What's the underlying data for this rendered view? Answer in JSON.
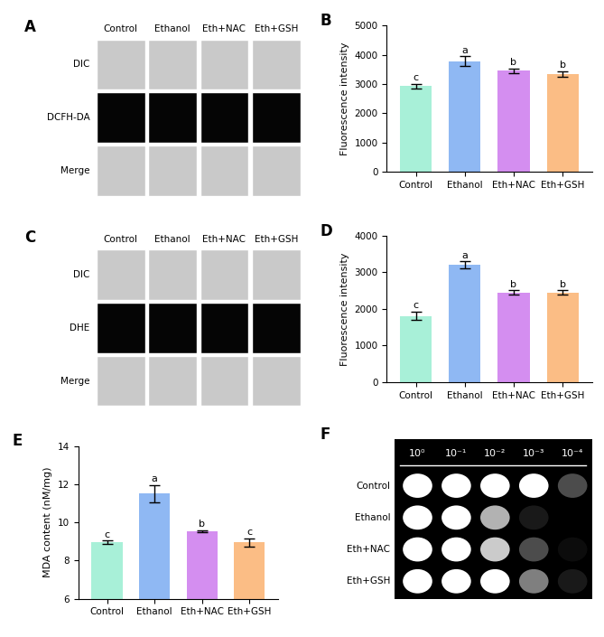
{
  "chart_data": [
    {
      "panel": "B",
      "type": "bar",
      "ylabel": "Fluorescence intensity",
      "categories": [
        "Control",
        "Ethanol",
        "Eth+NAC",
        "Eth+GSH"
      ],
      "values": [
        2930,
        3780,
        3460,
        3350
      ],
      "errors": [
        80,
        170,
        80,
        90
      ],
      "annotations": [
        "c",
        "a",
        "b",
        "b"
      ],
      "colors": [
        "#a8f0d8",
        "#8fb8f3",
        "#d48ef0",
        "#fbbd85"
      ],
      "ylim": [
        0,
        5000
      ],
      "yticks": [
        0,
        1000,
        2000,
        3000,
        4000,
        5000
      ]
    },
    {
      "panel": "D",
      "type": "bar",
      "ylabel": "Fluorescence intensity",
      "categories": [
        "Control",
        "Ethanol",
        "Eth+NAC",
        "Eth+GSH"
      ],
      "values": [
        1810,
        3200,
        2450,
        2450
      ],
      "errors": [
        120,
        100,
        60,
        60
      ],
      "annotations": [
        "c",
        "a",
        "b",
        "b"
      ],
      "colors": [
        "#a8f0d8",
        "#8fb8f3",
        "#d48ef0",
        "#fbbd85"
      ],
      "ylim": [
        0,
        4000
      ],
      "yticks": [
        0,
        1000,
        2000,
        3000,
        4000
      ]
    },
    {
      "panel": "E",
      "type": "bar",
      "ylabel": "MDA content (nM/mg)",
      "categories": [
        "Control",
        "Ethanol",
        "Eth+NAC",
        "Eth+GSH"
      ],
      "values": [
        8.95,
        11.5,
        9.55,
        8.95
      ],
      "errors": [
        0.1,
        0.45,
        0.05,
        0.2
      ],
      "annotations": [
        "c",
        "a",
        "b",
        "c"
      ],
      "colors": [
        "#a8f0d8",
        "#8fb8f3",
        "#d48ef0",
        "#fbbd85"
      ],
      "ylim": [
        6,
        14
      ],
      "yticks": [
        6,
        8,
        10,
        12,
        14
      ]
    }
  ],
  "image_panels": [
    {
      "panel": "A",
      "columns": [
        "Control",
        "Ethanol",
        "Eth+NAC",
        "Eth+GSH"
      ],
      "rows": [
        "DIC",
        "DCFH-DA",
        "Merge"
      ]
    },
    {
      "panel": "C",
      "columns": [
        "Control",
        "Ethanol",
        "Eth+NAC",
        "Eth+GSH"
      ],
      "rows": [
        "DIC",
        "DHE",
        "Merge"
      ]
    }
  ],
  "spot_assay": {
    "panel": "F",
    "columns": [
      "10⁰",
      "10⁻¹",
      "10⁻²",
      "10⁻³",
      "10⁻⁴"
    ],
    "rows": [
      "Control",
      "Ethanol",
      "Eth+NAC",
      "Eth+GSH"
    ],
    "growth": [
      [
        1,
        1,
        1,
        1,
        0.3
      ],
      [
        1,
        1,
        0.7,
        0.1,
        0
      ],
      [
        1,
        1,
        0.8,
        0.3,
        0.05
      ],
      [
        1,
        1,
        1,
        0.5,
        0.1
      ]
    ]
  }
}
